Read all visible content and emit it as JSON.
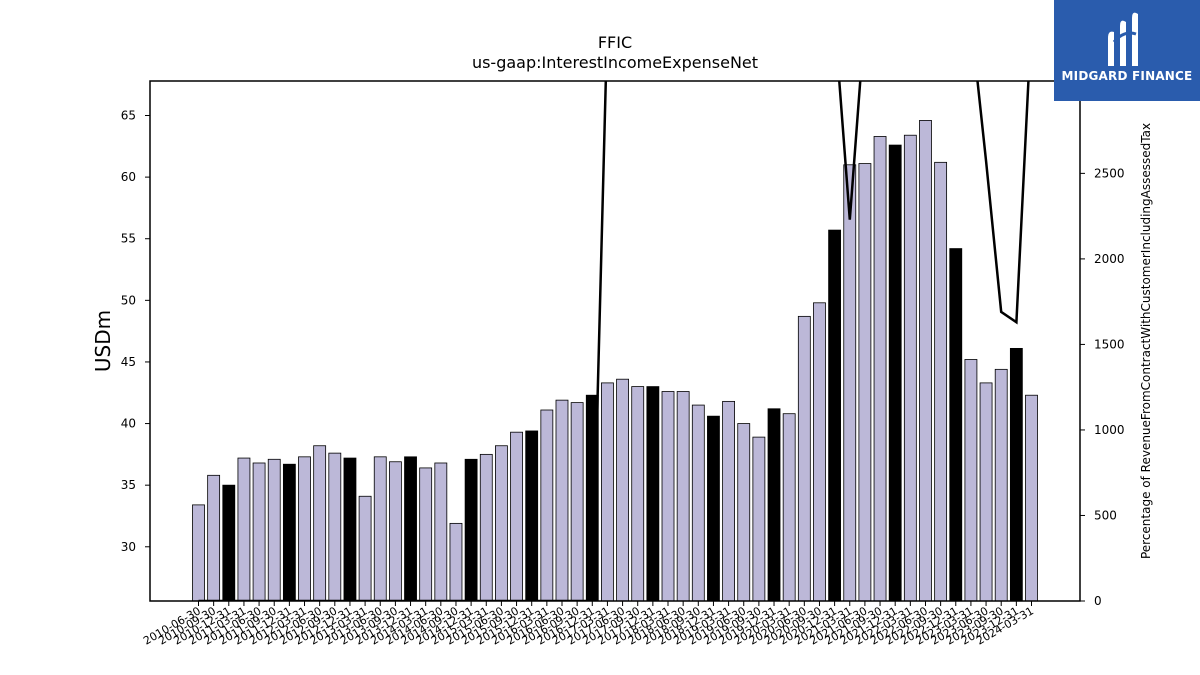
{
  "logo": {
    "text": "MIDGARD FINANCE"
  },
  "chart_data": {
    "type": "bar",
    "title": "FFIC",
    "subtitle": "us-gaap:InterestIncomeExpenseNet",
    "ylabel": "USDm",
    "y2label": "Percentage of RevenueFromContractWithCustomerIncludingAssessedTax",
    "ylim": [
      25.6,
      67.8
    ],
    "y2lim": [
      0,
      3040
    ],
    "yticks": [
      30,
      35,
      40,
      45,
      50,
      55,
      60,
      65
    ],
    "y2ticks": [
      0,
      500,
      1000,
      1500,
      2000,
      2500
    ],
    "colors": {
      "bar": "#bcb8d8",
      "highlight": "#000000",
      "line": "#000000",
      "edge": "#000000"
    },
    "categories": [
      "2010-06-30",
      "2010-09-30",
      "2010-12-31",
      "2011-03-31",
      "2011-06-30",
      "2011-09-30",
      "2011-12-31",
      "2012-03-31",
      "2012-06-30",
      "2012-09-30",
      "2012-12-31",
      "2013-03-31",
      "2013-06-30",
      "2013-09-30",
      "2013-12-31",
      "2014-03-31",
      "2014-06-30",
      "2014-09-30",
      "2014-12-31",
      "2015-03-31",
      "2015-06-30",
      "2015-09-30",
      "2015-12-31",
      "2016-03-31",
      "2016-06-30",
      "2016-09-30",
      "2016-12-31",
      "2017-03-31",
      "2017-06-30",
      "2017-09-30",
      "2017-12-31",
      "2018-03-31",
      "2018-06-30",
      "2018-09-30",
      "2018-12-31",
      "2019-03-31",
      "2019-06-30",
      "2019-09-30",
      "2019-12-31",
      "2020-03-31",
      "2020-06-30",
      "2020-09-30",
      "2020-12-31",
      "2021-03-31",
      "2021-06-30",
      "2021-09-30",
      "2021-12-31",
      "2022-03-31",
      "2022-06-30",
      "2022-09-30",
      "2022-12-31",
      "2023-03-31",
      "2023-06-30",
      "2023-09-30",
      "2023-12-31",
      "2024-03-31"
    ],
    "xtick_labels": [
      "2010-06-30",
      "2010-09-30",
      "2010-12-31",
      "2011-03-31",
      "2011-06-30",
      "2011-09-30",
      "2011-12-31",
      "2012-03-31",
      "2012-06-30",
      "2012-09-30",
      "2012-12-31",
      "2013-03-31",
      "2013-06-30",
      "2013-09-30",
      "2013-12-31",
      "2014-03-31",
      "2014-06-30",
      "2014-09-30",
      "2014-12-31",
      "2015-03-31",
      "2015-06-30",
      "2015-09-30",
      "2015-12-31",
      "2016-03-31",
      "2016-06-30",
      "2016-09-30",
      "2016-12-31",
      "2017-03-31",
      "2017-06-30",
      "2017-09-30",
      "2017-12-31",
      "2018-03-31",
      "2018-06-30",
      "2018-09-30",
      "2018-12-31",
      "2019-03-31",
      "2019-06-30",
      "2019-09-30",
      "2019-12-31",
      "2020-03-31",
      "2020-06-30",
      "2020-09-30",
      "2020-12-31",
      "2021-03-31",
      "2021-06-30",
      "2021-09-30",
      "2021-12-31",
      "2022-03-31",
      "2022-06-30",
      "2022-09-30",
      "2022-12-31",
      "2023-03-31",
      "2023-06-30",
      "2023-09-30",
      "2023-12-31",
      "2024-03-31"
    ],
    "values": [
      33.4,
      35.8,
      35.0,
      37.2,
      36.8,
      37.1,
      36.7,
      37.3,
      38.2,
      37.6,
      37.2,
      34.1,
      37.3,
      36.9,
      37.3,
      36.4,
      36.8,
      31.9,
      37.1,
      37.5,
      38.2,
      39.3,
      39.4,
      41.1,
      41.9,
      41.7,
      42.3,
      43.3,
      43.6,
      43.0,
      43.0,
      42.6,
      42.6,
      41.5,
      40.6,
      41.8,
      40.0,
      38.9,
      41.2,
      40.8,
      48.7,
      49.8,
      55.7,
      61.0,
      61.1,
      63.3,
      62.6,
      63.4,
      64.6,
      61.2,
      54.2,
      45.2,
      43.3,
      44.4,
      46.1,
      42.3
    ],
    "highlighted": [
      false,
      false,
      true,
      false,
      false,
      false,
      true,
      false,
      false,
      false,
      true,
      false,
      false,
      false,
      true,
      false,
      false,
      false,
      true,
      false,
      false,
      false,
      true,
      false,
      false,
      false,
      true,
      false,
      false,
      false,
      true,
      false,
      false,
      false,
      true,
      false,
      false,
      false,
      true,
      false,
      false,
      false,
      true,
      false,
      false,
      false,
      true,
      false,
      false,
      false,
      true,
      false,
      false,
      false,
      true,
      false
    ],
    "line_series": {
      "name": "",
      "points": [
        [
          0,
          0
        ],
        [
          1,
          0
        ],
        [
          2,
          0
        ],
        [
          3,
          0
        ],
        [
          4,
          0
        ],
        [
          5,
          0
        ],
        [
          6,
          0
        ],
        [
          7,
          0
        ],
        [
          8,
          0
        ],
        [
          9,
          0
        ],
        [
          10,
          0
        ],
        [
          11,
          0
        ],
        [
          12,
          0
        ],
        [
          13,
          0
        ],
        [
          14,
          0
        ],
        [
          15,
          0
        ],
        [
          16,
          0
        ],
        [
          17,
          0
        ],
        [
          18,
          0
        ],
        [
          19,
          0
        ],
        [
          20,
          0
        ],
        [
          21,
          0
        ],
        [
          22,
          0
        ],
        [
          23,
          0
        ],
        [
          24,
          0
        ],
        [
          25,
          0
        ],
        [
          26,
          0
        ],
        [
          27,
          3400
        ],
        [
          28,
          3400
        ],
        [
          29,
          3400
        ],
        [
          30,
          3400
        ],
        [
          31,
          3400
        ],
        [
          32,
          3400
        ],
        [
          33,
          3400
        ],
        [
          34,
          3400
        ],
        [
          35,
          3400
        ],
        [
          36,
          3400
        ],
        [
          37,
          3400
        ],
        [
          38,
          3400
        ],
        [
          39,
          3400
        ],
        [
          40,
          3400
        ],
        [
          41,
          3400
        ],
        [
          42,
          3400
        ],
        [
          43,
          2230
        ],
        [
          44,
          3400
        ],
        [
          45,
          3400
        ],
        [
          46,
          3400
        ],
        [
          47,
          3400
        ],
        [
          48,
          3400
        ],
        [
          49,
          3400
        ],
        [
          50,
          3400
        ],
        [
          51,
          3400
        ],
        [
          52,
          2570
        ],
        [
          53,
          1690
        ],
        [
          54,
          1630
        ],
        [
          55,
          3400
        ]
      ]
    }
  }
}
